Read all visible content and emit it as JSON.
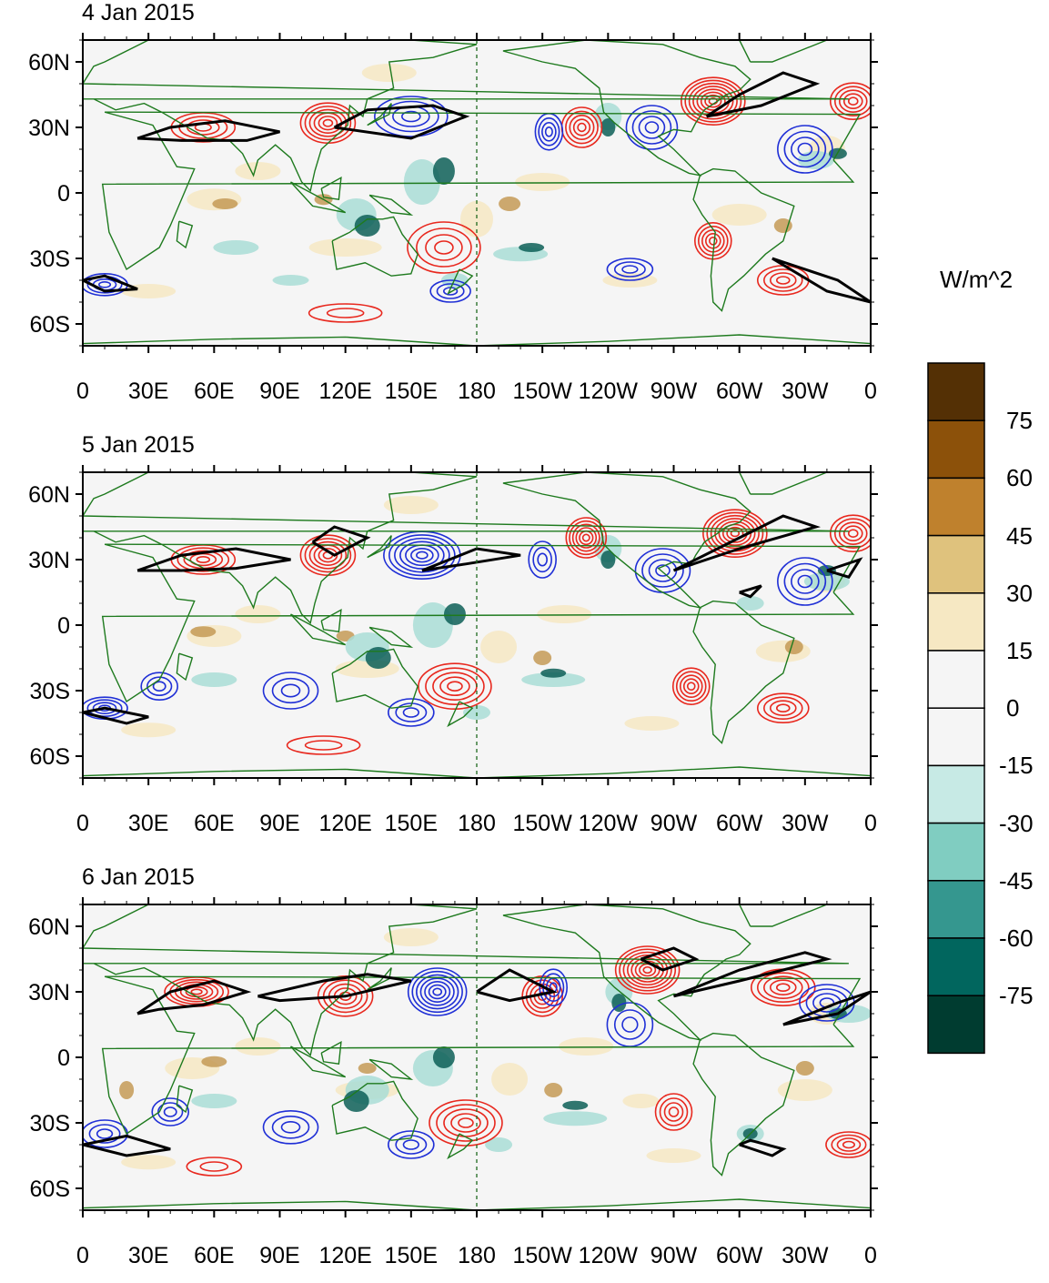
{
  "panels": [
    {
      "date": "4 Jan 2015"
    },
    {
      "date": "5 Jan 2015"
    },
    {
      "date": "6 Jan 2015"
    }
  ],
  "axes": {
    "x_ticks": [
      "0",
      "30E",
      "60E",
      "90E",
      "120E",
      "150E",
      "180",
      "150W",
      "120W",
      "90W",
      "60W",
      "30W",
      "0"
    ],
    "y_ticks": [
      "60N",
      "30N",
      "0",
      "30S",
      "60S"
    ]
  },
  "colorbar": {
    "unit": "W/m^2",
    "labels": [
      "75",
      "60",
      "45",
      "30",
      "15",
      "0",
      "-15",
      "-30",
      "-45",
      "-60",
      "-75"
    ],
    "colors": [
      "#543005",
      "#8c510a",
      "#bf812d",
      "#dfc27d",
      "#f6e8c3",
      "#f5f5f5",
      "#f5f5f5",
      "#c7eae5",
      "#80cdc1",
      "#35978f",
      "#01665e",
      "#003c30"
    ]
  },
  "styles": {
    "pos_contour": "#e8281e",
    "neg_contour": "#1f2fd6",
    "jet_contour": "#000000",
    "coast": "#1e7a1e"
  }
}
